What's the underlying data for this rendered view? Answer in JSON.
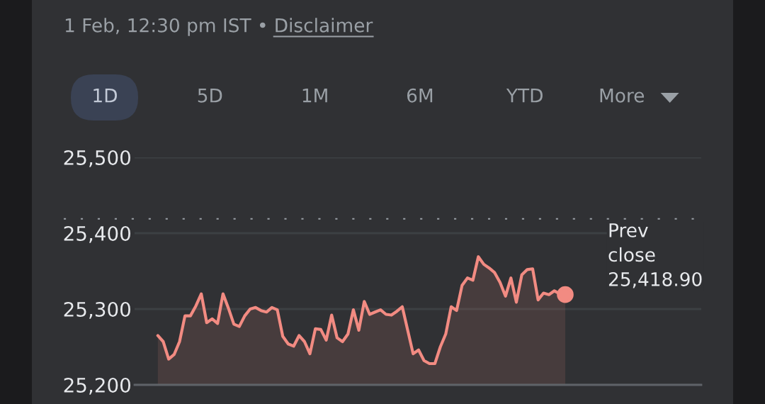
{
  "chart_data": {
    "type": "area",
    "subtitle": "1 Feb, 12:30 pm IST •",
    "annotations": [
      "Disclaimer",
      "1D",
      "5D",
      "1M",
      "6M",
      "YTD",
      "More"
    ],
    "categories": [
      null,
      null,
      null,
      null,
      null,
      null,
      null,
      null,
      null,
      null,
      null,
      null,
      null,
      null,
      null,
      null,
      null,
      null,
      null,
      null,
      null,
      null,
      null,
      null,
      null,
      null,
      null,
      null,
      null,
      null,
      null,
      null,
      null,
      null,
      null,
      null,
      null,
      null,
      null,
      null,
      null,
      null,
      null,
      null,
      null,
      null,
      null,
      null,
      null,
      null,
      null,
      null,
      null,
      null,
      null,
      null,
      null,
      null,
      null,
      null,
      null,
      null,
      null,
      null,
      null,
      null,
      null,
      null,
      null,
      null,
      null,
      null,
      null,
      null,
      null,
      null
    ],
    "series": [
      {
        "color": "#f28b82",
        "values": [
          25265,
          25257,
          25234,
          25240,
          25257,
          25291,
          25291,
          25304,
          25320,
          25282,
          25287,
          25281,
          25320,
          25301,
          25280,
          25277,
          25291,
          25300,
          25302,
          25298,
          25296,
          25302,
          25299,
          25264,
          25254,
          25251,
          25265,
          25257,
          25241,
          25274,
          25273,
          25259,
          25292,
          25262,
          25257,
          25267,
          25299,
          25272,
          25310,
          25293,
          25296,
          25299,
          25293,
          25292,
          25297,
          25303,
          25272,
          25241,
          25246,
          25232,
          25228,
          25228,
          25250,
          25267,
          25303,
          25298,
          25331,
          25341,
          25338,
          25369,
          25359,
          25354,
          25348,
          25335,
          25317,
          25341,
          25309,
          25345,
          25352,
          25353,
          25312,
          25321,
          25319,
          25324,
          25320,
          25319
        ]
      },
      {
        "type": "scatter",
        "color": "#f28b82",
        "marker": "circle",
        "values": [
          null,
          null,
          null,
          null,
          null,
          null,
          null,
          null,
          null,
          null,
          null,
          null,
          null,
          null,
          null,
          null,
          null,
          null,
          null,
          null,
          null,
          null,
          null,
          null,
          null,
          null,
          null,
          null,
          null,
          null,
          null,
          null,
          null,
          null,
          null,
          null,
          null,
          null,
          null,
          null,
          null,
          null,
          null,
          null,
          null,
          null,
          null,
          null,
          null,
          null,
          null,
          null,
          null,
          null,
          null,
          null,
          null,
          null,
          null,
          null,
          null,
          null,
          null,
          null,
          null,
          null,
          null,
          null,
          null,
          null,
          null,
          null,
          null,
          null,
          null,
          25319
        ]
      }
    ],
    "ylim": [
      25200,
      25500
    ],
    "yticks": [
      {
        "value": 25200,
        "label": "25,200"
      },
      {
        "value": 25300,
        "label": "25,300"
      },
      {
        "value": 25400,
        "label": "25,400"
      },
      {
        "value": 25500,
        "label": "25,500"
      }
    ],
    "ref_lines": [
      {
        "axis": "y",
        "value": 25418.9,
        "label": "Prev\nclose\n25,418.90",
        "color": "#9aa0a6",
        "line_style": "dotted"
      }
    ],
    "grid": "y",
    "tick_labels": "y"
  }
}
